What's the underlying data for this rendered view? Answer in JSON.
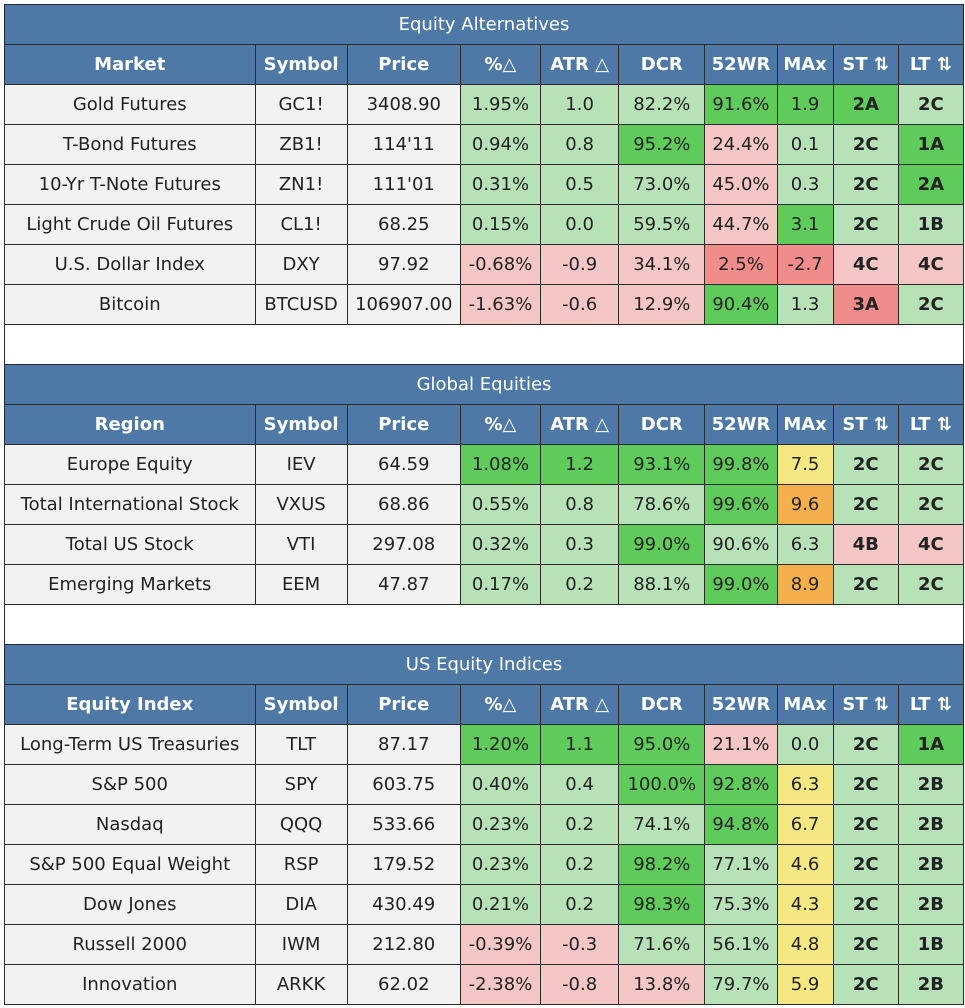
{
  "colors": {
    "header_blue": "#4e79a7",
    "light_green": "#b7e2b7",
    "green": "#5fcb5a",
    "light_red": "#f4c6c5",
    "red": "#f08c8a",
    "yellow": "#f5e883",
    "orange": "#f4b04d",
    "neutral": "#f2f2f2"
  },
  "sections": [
    {
      "title": "Equity Alternatives",
      "headers": [
        "Market",
        "Symbol",
        "Price",
        "%△",
        "ATR △",
        "DCR",
        "52WR",
        "MAx",
        "ST ⇅",
        "LT ⇅"
      ],
      "rows": [
        {
          "name": "Gold Futures",
          "symbol": "GC1!",
          "price": "3408.90",
          "pct": "1.95%",
          "atr": "1.0",
          "dcr": "82.2%",
          "wr52": "91.6%",
          "max": "1.9",
          "st": "2A",
          "lt": "2C",
          "colors": {
            "pct": "lg",
            "atr": "lg",
            "dcr": "lg",
            "wr52": "g",
            "max": "g",
            "st": "g",
            "lt": "lg"
          }
        },
        {
          "name": "T-Bond Futures",
          "symbol": "ZB1!",
          "price": "114'11",
          "pct": "0.94%",
          "atr": "0.8",
          "dcr": "95.2%",
          "wr52": "24.4%",
          "max": "0.1",
          "st": "2C",
          "lt": "1A",
          "colors": {
            "pct": "lg",
            "atr": "lg",
            "dcr": "g",
            "wr52": "lr",
            "max": "lg",
            "st": "lg",
            "lt": "g"
          }
        },
        {
          "name": "10-Yr T-Note Futures",
          "symbol": "ZN1!",
          "price": "111'01",
          "pct": "0.31%",
          "atr": "0.5",
          "dcr": "73.0%",
          "wr52": "45.0%",
          "max": "0.3",
          "st": "2C",
          "lt": "2A",
          "colors": {
            "pct": "lg",
            "atr": "lg",
            "dcr": "lg",
            "wr52": "lr",
            "max": "lg",
            "st": "lg",
            "lt": "g"
          }
        },
        {
          "name": "Light Crude Oil Futures",
          "symbol": "CL1!",
          "price": "68.25",
          "pct": "0.15%",
          "atr": "0.0",
          "dcr": "59.5%",
          "wr52": "44.7%",
          "max": "3.1",
          "st": "2C",
          "lt": "1B",
          "colors": {
            "pct": "lg",
            "atr": "lg",
            "dcr": "lg",
            "wr52": "lr",
            "max": "g",
            "st": "lg",
            "lt": "lg"
          }
        },
        {
          "name": "U.S. Dollar Index",
          "symbol": "DXY",
          "price": "97.92",
          "pct": "-0.68%",
          "atr": "-0.9",
          "dcr": "34.1%",
          "wr52": "2.5%",
          "max": "-2.7",
          "st": "4C",
          "lt": "4C",
          "colors": {
            "pct": "lr",
            "atr": "lr",
            "dcr": "lr",
            "wr52": "r",
            "max": "r",
            "st": "lr",
            "lt": "lr"
          }
        },
        {
          "name": "Bitcoin",
          "symbol": "BTCUSD",
          "price": "106907.00",
          "pct": "-1.63%",
          "atr": "-0.6",
          "dcr": "12.9%",
          "wr52": "90.4%",
          "max": "1.3",
          "st": "3A",
          "lt": "2C",
          "colors": {
            "pct": "lr",
            "atr": "lr",
            "dcr": "lr",
            "wr52": "g",
            "max": "lg",
            "st": "r",
            "lt": "lg"
          }
        }
      ]
    },
    {
      "title": "Global Equities",
      "headers": [
        "Region",
        "Symbol",
        "Price",
        "%△",
        "ATR △",
        "DCR",
        "52WR",
        "MAx",
        "ST ⇅",
        "LT ⇅"
      ],
      "rows": [
        {
          "name": "Europe Equity",
          "symbol": "IEV",
          "price": "64.59",
          "pct": "1.08%",
          "atr": "1.2",
          "dcr": "93.1%",
          "wr52": "99.8%",
          "max": "7.5",
          "st": "2C",
          "lt": "2C",
          "colors": {
            "pct": "g",
            "atr": "g",
            "dcr": "g",
            "wr52": "g",
            "max": "y",
            "st": "lg",
            "lt": "lg"
          }
        },
        {
          "name": "Total International Stock",
          "symbol": "VXUS",
          "price": "68.86",
          "pct": "0.55%",
          "atr": "0.8",
          "dcr": "78.6%",
          "wr52": "99.6%",
          "max": "9.6",
          "st": "2C",
          "lt": "2C",
          "colors": {
            "pct": "lg",
            "atr": "lg",
            "dcr": "lg",
            "wr52": "g",
            "max": "o",
            "st": "lg",
            "lt": "lg"
          }
        },
        {
          "name": "Total US Stock",
          "symbol": "VTI",
          "price": "297.08",
          "pct": "0.32%",
          "atr": "0.3",
          "dcr": "99.0%",
          "wr52": "90.6%",
          "max": "6.3",
          "st": "4B",
          "lt": "4C",
          "colors": {
            "pct": "lg",
            "atr": "lg",
            "dcr": "g",
            "wr52": "lg",
            "max": "lg",
            "st": "lr",
            "lt": "lr"
          }
        },
        {
          "name": "Emerging Markets",
          "symbol": "EEM",
          "price": "47.87",
          "pct": "0.17%",
          "atr": "0.2",
          "dcr": "88.1%",
          "wr52": "99.0%",
          "max": "8.9",
          "st": "2C",
          "lt": "2C",
          "colors": {
            "pct": "lg",
            "atr": "lg",
            "dcr": "lg",
            "wr52": "g",
            "max": "o",
            "st": "lg",
            "lt": "lg"
          }
        }
      ]
    },
    {
      "title": "US Equity Indices",
      "headers": [
        "Equity Index",
        "Symbol",
        "Price",
        "%△",
        "ATR △",
        "DCR",
        "52WR",
        "MAx",
        "ST ⇅",
        "LT ⇅"
      ],
      "rows": [
        {
          "name": "Long-Term US Treasuries",
          "symbol": "TLT",
          "price": "87.17",
          "pct": "1.20%",
          "atr": "1.1",
          "dcr": "95.0%",
          "wr52": "21.1%",
          "max": "0.0",
          "st": "2C",
          "lt": "1A",
          "colors": {
            "pct": "g",
            "atr": "g",
            "dcr": "g",
            "wr52": "lr",
            "max": "lg",
            "st": "lg",
            "lt": "g"
          }
        },
        {
          "name": "S&P 500",
          "symbol": "SPY",
          "price": "603.75",
          "pct": "0.40%",
          "atr": "0.4",
          "dcr": "100.0%",
          "wr52": "92.8%",
          "max": "6.3",
          "st": "2C",
          "lt": "2B",
          "colors": {
            "pct": "lg",
            "atr": "lg",
            "dcr": "g",
            "wr52": "g",
            "max": "y",
            "st": "lg",
            "lt": "lg"
          }
        },
        {
          "name": "Nasdaq",
          "symbol": "QQQ",
          "price": "533.66",
          "pct": "0.23%",
          "atr": "0.2",
          "dcr": "74.1%",
          "wr52": "94.8%",
          "max": "6.7",
          "st": "2C",
          "lt": "2B",
          "colors": {
            "pct": "lg",
            "atr": "lg",
            "dcr": "lg",
            "wr52": "g",
            "max": "y",
            "st": "lg",
            "lt": "lg"
          }
        },
        {
          "name": "S&P 500 Equal Weight",
          "symbol": "RSP",
          "price": "179.52",
          "pct": "0.23%",
          "atr": "0.2",
          "dcr": "98.2%",
          "wr52": "77.1%",
          "max": "4.6",
          "st": "2C",
          "lt": "2B",
          "colors": {
            "pct": "lg",
            "atr": "lg",
            "dcr": "g",
            "wr52": "lg",
            "max": "y",
            "st": "lg",
            "lt": "lg"
          }
        },
        {
          "name": "Dow Jones",
          "symbol": "DIA",
          "price": "430.49",
          "pct": "0.21%",
          "atr": "0.2",
          "dcr": "98.3%",
          "wr52": "75.3%",
          "max": "4.3",
          "st": "2C",
          "lt": "2B",
          "colors": {
            "pct": "lg",
            "atr": "lg",
            "dcr": "g",
            "wr52": "lg",
            "max": "y",
            "st": "lg",
            "lt": "lg"
          }
        },
        {
          "name": "Russell 2000",
          "symbol": "IWM",
          "price": "212.80",
          "pct": "-0.39%",
          "atr": "-0.3",
          "dcr": "71.6%",
          "wr52": "56.1%",
          "max": "4.8",
          "st": "2C",
          "lt": "1B",
          "colors": {
            "pct": "lr",
            "atr": "lr",
            "dcr": "lg",
            "wr52": "lg",
            "max": "y",
            "st": "lg",
            "lt": "lg"
          }
        },
        {
          "name": "Innovation",
          "symbol": "ARKK",
          "price": "62.02",
          "pct": "-2.38%",
          "atr": "-0.8",
          "dcr": "13.8%",
          "wr52": "79.7%",
          "max": "5.9",
          "st": "2C",
          "lt": "2B",
          "colors": {
            "pct": "lr",
            "atr": "lr",
            "dcr": "lr",
            "wr52": "lg",
            "max": "y",
            "st": "lg",
            "lt": "lg"
          }
        }
      ]
    }
  ]
}
